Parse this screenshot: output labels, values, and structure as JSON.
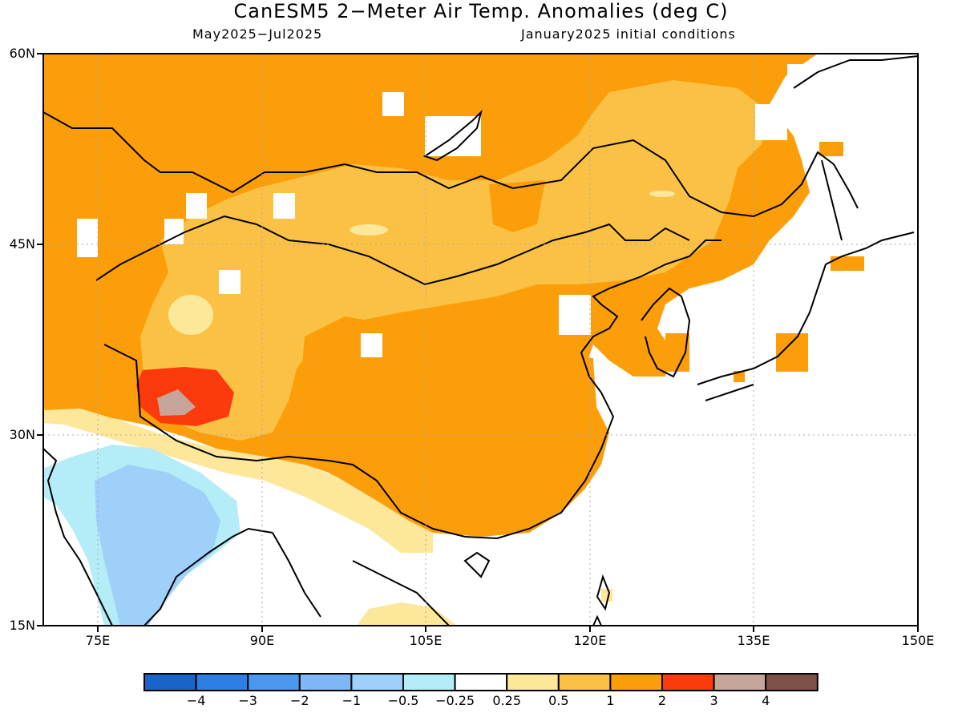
{
  "title": "CanESM5 2−Meter Air Temp. Anomalies (deg C)",
  "subtitle_left": "May2025−Jul2025",
  "subtitle_right": "January2025 initial conditions",
  "lat_labels": [
    "60N",
    "45N",
    "30N",
    "15N"
  ],
  "lon_labels": [
    "75E",
    "90E",
    "105E",
    "120E",
    "135E",
    "150E"
  ],
  "colorbar": {
    "labels": [
      "−4",
      "−3",
      "−2",
      "−1",
      "−0.5",
      "−0.25",
      "0.25",
      "0.5",
      "1",
      "2",
      "3",
      "4"
    ],
    "colors": [
      "#1a63c8",
      "#2e7ee6",
      "#4a98ef",
      "#7fb6f5",
      "#9fd0fa",
      "#b4ecf8",
      "#ffffff",
      "#fde79a",
      "#fbc145",
      "#fb9e0a",
      "#fc3a0b",
      "#c6a59a",
      "#7e5249"
    ]
  },
  "map": {
    "region": "East Asia",
    "lon_range": [
      70,
      150
    ],
    "lat_range": [
      15,
      60
    ],
    "colors": {
      "land_anom_1_2": "#fb9e0a",
      "anom_05_1": "#fbc145",
      "anom_025_05": "#fde79a",
      "anom_2_3": "#fc3a0b",
      "anom_3_4": "#c6a59a",
      "anom_neg_025_05": "#b4ecf8",
      "anom_neg_05_1": "#9fd0fa"
    }
  }
}
